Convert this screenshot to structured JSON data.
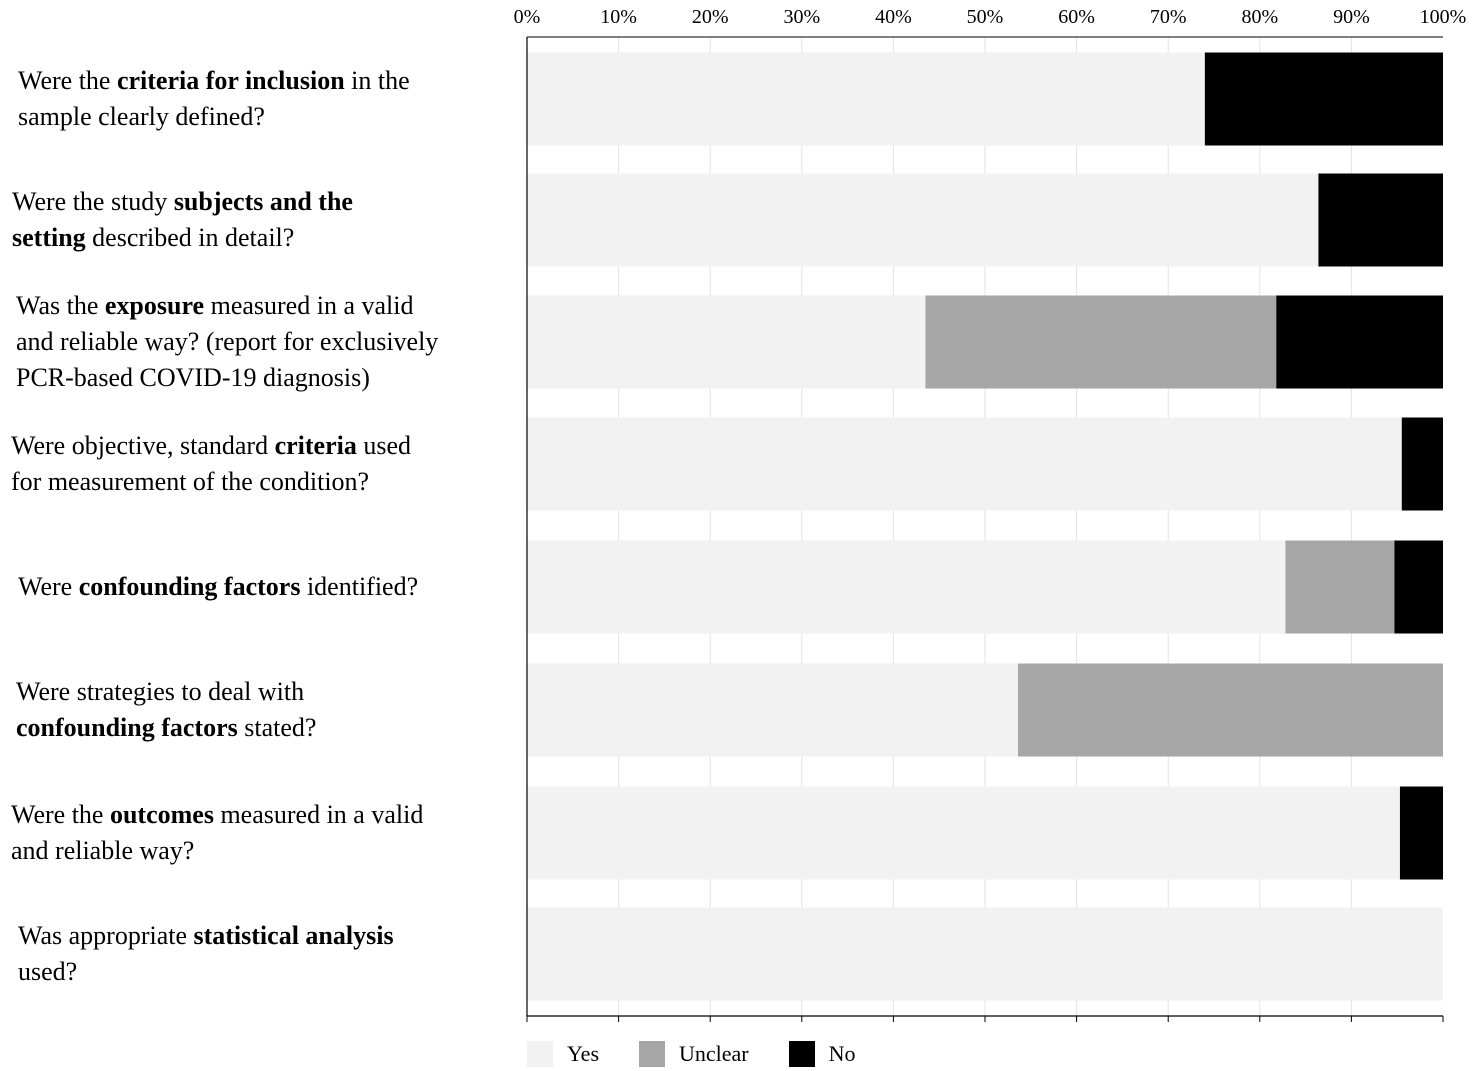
{
  "chart_data": {
    "type": "bar",
    "orientation": "horizontal",
    "stacked": true,
    "title": "",
    "xlabel": "",
    "ylabel": "",
    "xlim": [
      0,
      100
    ],
    "x_ticks": [
      "0%",
      "10%",
      "20%",
      "30%",
      "40%",
      "50%",
      "60%",
      "70%",
      "80%",
      "90%",
      "100%"
    ],
    "x_axis_position": "top",
    "grid": true,
    "legend_position": "bottom-left",
    "categories": [
      [
        {
          "t": "Were the "
        },
        {
          "t": "criteria for inclusion",
          "b": true
        },
        {
          "t": " in the"
        },
        {
          "br": true
        },
        {
          "t": "sample clearly defined?"
        }
      ],
      [
        {
          "t": "Were the study "
        },
        {
          "t": "subjects and the",
          "b": true
        },
        {
          "br": true
        },
        {
          "t": "setting",
          "b": true
        },
        {
          "t": " described in detail?"
        }
      ],
      [
        {
          "t": "Was the "
        },
        {
          "t": "exposure",
          "b": true
        },
        {
          "t": " measured in a valid"
        },
        {
          "br": true
        },
        {
          "t": "and reliable way? (report for exclusively"
        },
        {
          "br": true
        },
        {
          "t": "PCR-based COVID-19 diagnosis)"
        }
      ],
      [
        {
          "t": "Were objective, standard "
        },
        {
          "t": "criteria",
          "b": true
        },
        {
          "t": " used"
        },
        {
          "br": true
        },
        {
          "t": "for measurement of the condition?"
        }
      ],
      [
        {
          "t": "Were "
        },
        {
          "t": "confounding factors",
          "b": true
        },
        {
          "t": " identified?"
        }
      ],
      [
        {
          "t": "Were strategies to deal with"
        },
        {
          "br": true
        },
        {
          "t": "confounding factors",
          "b": true
        },
        {
          "t": " stated?"
        }
      ],
      [
        {
          "t": "Were the "
        },
        {
          "t": "outcomes",
          "b": true
        },
        {
          "t": " measured in a valid"
        },
        {
          "br": true
        },
        {
          "t": "and reliable way?"
        }
      ],
      [
        {
          "t": "Was appropriate "
        },
        {
          "t": "statistical analysis",
          "b": true
        },
        {
          "br": true
        },
        {
          "t": "used?"
        }
      ]
    ],
    "series": [
      {
        "name": "Yes",
        "color": "#f2f2f2",
        "values": [
          74,
          86.4,
          43.5,
          95.5,
          82.8,
          53.6,
          95.3,
          100
        ]
      },
      {
        "name": "Unclear",
        "color": "#a6a6a6",
        "values": [
          0,
          0,
          38.3,
          0,
          11.9,
          46.4,
          0,
          0
        ]
      },
      {
        "name": "No",
        "color": "#000000",
        "values": [
          26,
          13.6,
          18.2,
          4.5,
          5.3,
          0,
          4.7,
          0
        ]
      }
    ]
  }
}
